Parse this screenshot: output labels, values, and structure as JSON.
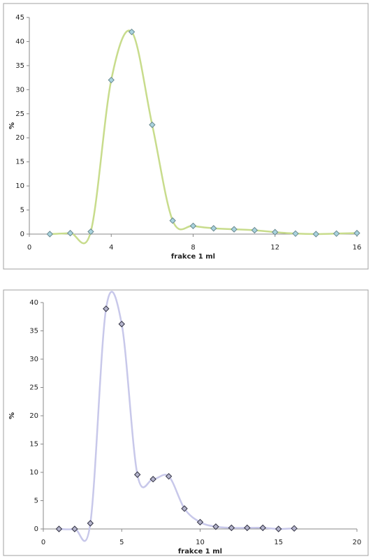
{
  "chart_data": [
    {
      "type": "line",
      "xlabel": "frakce 1 ml",
      "ylabel": "%",
      "smooth": true,
      "x": [
        1,
        2,
        3,
        4,
        5,
        6,
        7,
        8,
        9,
        10,
        11,
        12,
        13,
        14,
        15,
        16
      ],
      "values": [
        0,
        0.2,
        0.5,
        32,
        42,
        22.7,
        2.8,
        1.7,
        1.2,
        1.0,
        0.8,
        0.4,
        0.1,
        0,
        0.1,
        0.2
      ],
      "color": "#c8dc8c",
      "marker_fill": "#a9d3de",
      "marker_stroke": "#6a8a90",
      "xlim": [
        0,
        16
      ],
      "xticks": [
        0,
        4,
        8,
        12,
        16
      ],
      "ylim": [
        0,
        45
      ],
      "yticks": [
        0,
        5,
        10,
        15,
        20,
        25,
        30,
        35,
        40,
        45
      ]
    },
    {
      "type": "line",
      "xlabel": "frakce 1 ml",
      "ylabel": "%",
      "smooth": true,
      "x": [
        1,
        2,
        3,
        4,
        5,
        6,
        7,
        8,
        9,
        10,
        11,
        12,
        13,
        14,
        15,
        16
      ],
      "values": [
        0,
        0,
        1.0,
        38.9,
        36.2,
        9.6,
        8.8,
        9.3,
        3.6,
        1.2,
        0.4,
        0.2,
        0.2,
        0.2,
        0,
        0.1
      ],
      "color": "#c8c8ea",
      "marker_fill": "#b4b4cc",
      "marker_stroke": "#333344",
      "xlim": [
        0,
        20
      ],
      "xticks": [
        0,
        5,
        10,
        15,
        20
      ],
      "ylim": [
        0,
        40
      ],
      "yticks": [
        0,
        5,
        10,
        15,
        20,
        25,
        30,
        35,
        40
      ]
    }
  ]
}
